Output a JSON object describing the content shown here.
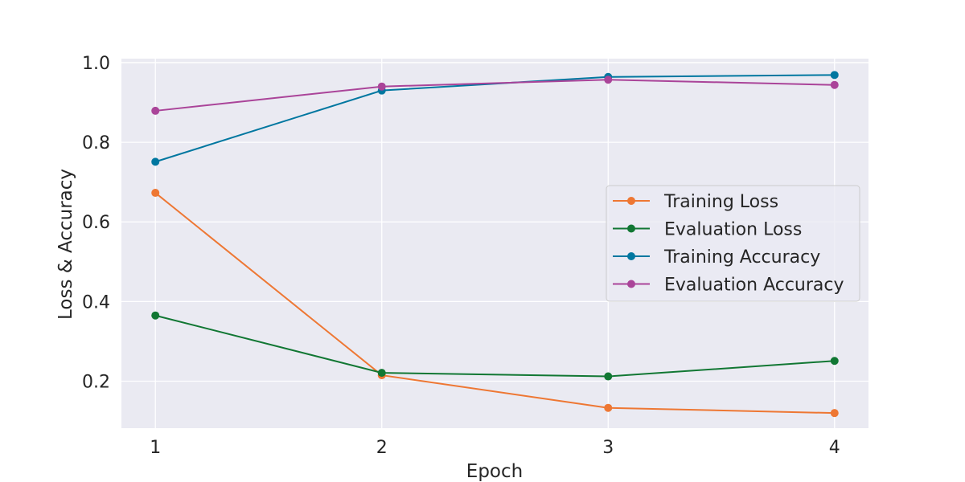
{
  "chart_data": {
    "type": "line",
    "title": "",
    "xlabel": "Epoch",
    "ylabel": "Loss & Accuracy",
    "x": [
      1,
      2,
      3,
      4
    ],
    "xticks": [
      "1",
      "2",
      "3",
      "4"
    ],
    "yticks": [
      "0.2",
      "0.4",
      "0.6",
      "0.8",
      "1.0"
    ],
    "xlim": [
      0.85,
      4.15
    ],
    "ylim": [
      0.082,
      1.01
    ],
    "grid": true,
    "legend_position": "center-right",
    "series": [
      {
        "name": "Training Loss",
        "color": "#ee7733",
        "values": [
          0.673,
          0.215,
          0.133,
          0.12
        ]
      },
      {
        "name": "Evaluation Loss",
        "color": "#117733",
        "values": [
          0.365,
          0.221,
          0.212,
          0.251
        ]
      },
      {
        "name": "Training Accuracy",
        "color": "#0077a0",
        "values": [
          0.751,
          0.93,
          0.964,
          0.969
        ]
      },
      {
        "name": "Evaluation Accuracy",
        "color": "#aa4499",
        "values": [
          0.879,
          0.94,
          0.957,
          0.944
        ]
      }
    ]
  }
}
